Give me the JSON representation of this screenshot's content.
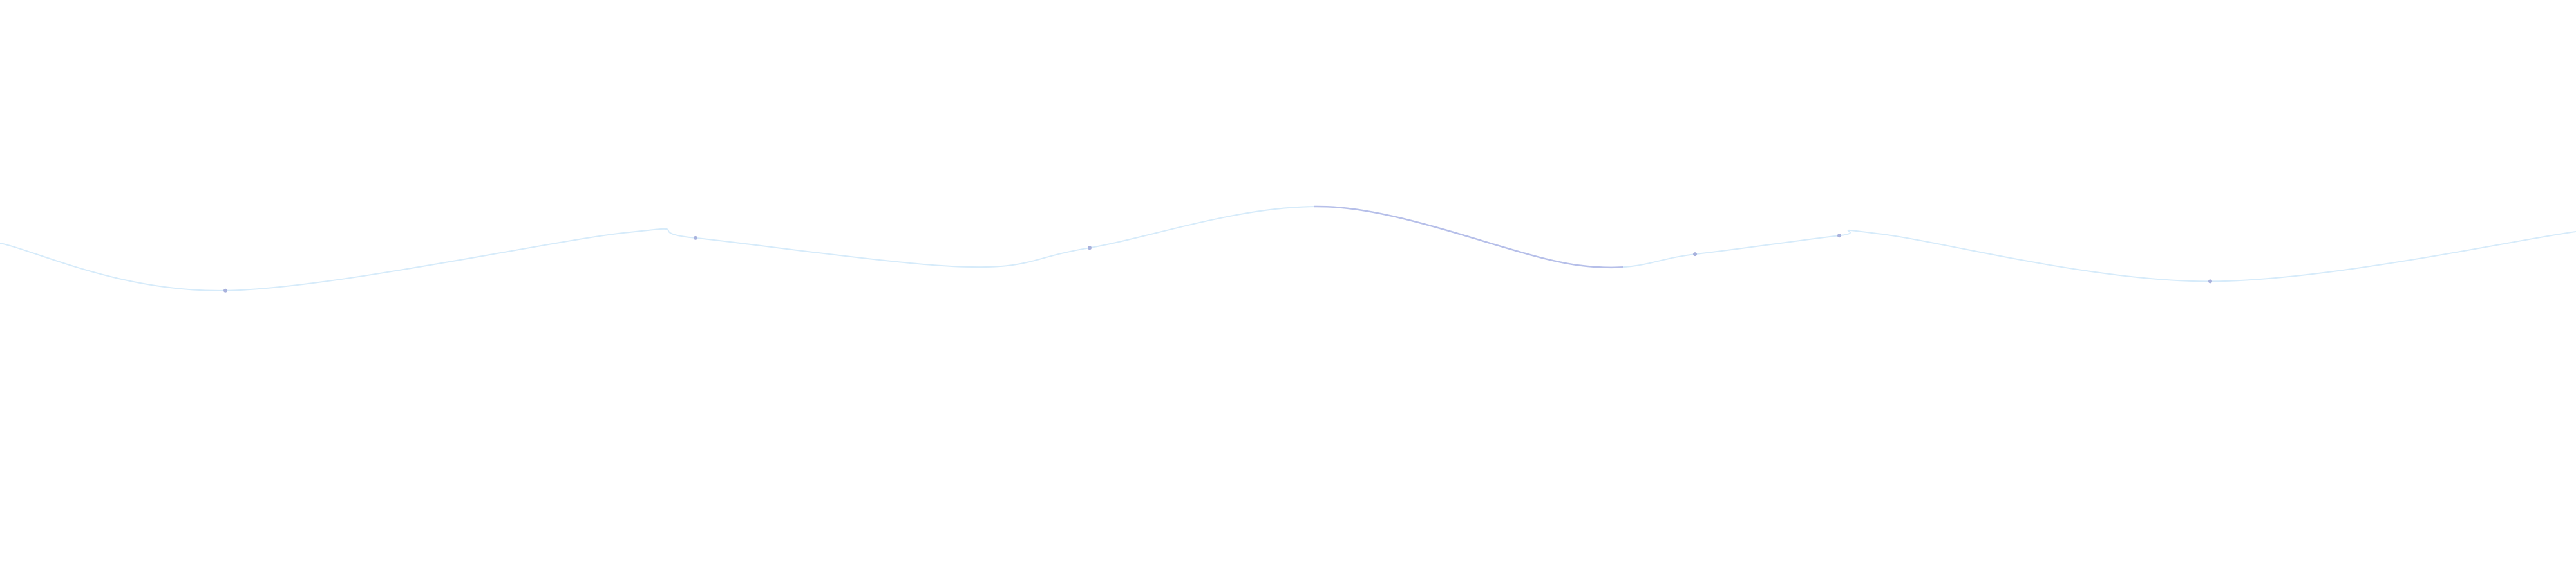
{
  "chart_data": {
    "type": "line",
    "title": "",
    "xlabel": "",
    "ylabel": "",
    "axes_visible": false,
    "grid": false,
    "legend": "none",
    "xlim": [
      0,
      100
    ],
    "ylim": [
      0,
      100
    ],
    "curve": {
      "x": [
        0,
        8.75,
        24.25,
        27,
        37.5,
        42.3,
        51.5,
        61.25,
        65.8,
        71.4,
        73,
        85.8,
        100
      ],
      "y": [
        58,
        49.8,
        59.8,
        58.9,
        53.9,
        57.2,
        64.3,
        54.2,
        56.1,
        59.3,
        59.6,
        51.4,
        60
      ]
    },
    "markers": {
      "x": [
        8.75,
        27,
        42.3,
        65.8,
        71.4,
        85.8
      ],
      "y": [
        49.8,
        58.9,
        57.2,
        56.1,
        59.3,
        51.4
      ]
    },
    "highlight_range_x": [
      51,
      63
    ],
    "colors": {
      "line": "#d6ebfa",
      "highlight": "#b6bfe9",
      "marker": "#a9b2dd"
    }
  }
}
